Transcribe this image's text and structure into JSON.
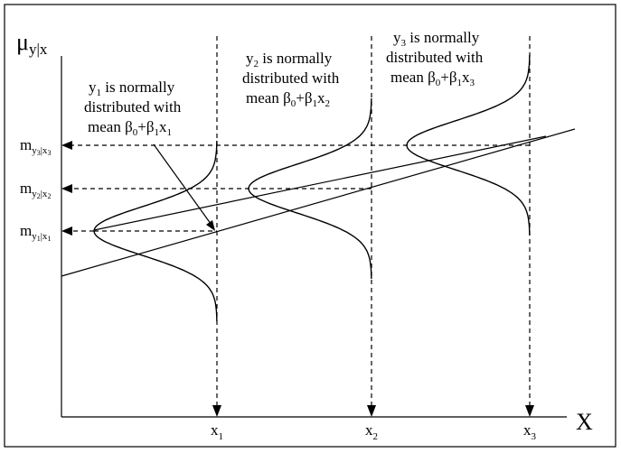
{
  "axes": {
    "y_title": {
      "main": "μ",
      "sub": "y|x"
    },
    "x_title": "X"
  },
  "x_ticks": [
    {
      "main": "x",
      "sub": "1"
    },
    {
      "main": "x",
      "sub": "2"
    },
    {
      "main": "x",
      "sub": "3"
    }
  ],
  "y_ticks": [
    {
      "main": "m",
      "sub": "y",
      "subsub": "3",
      "bar": "|x",
      "barsub": "3"
    },
    {
      "main": "m",
      "sub": "y",
      "subsub": "2",
      "bar": "|x",
      "barsub": "2"
    },
    {
      "main": "m",
      "sub": "y",
      "subsub": "1",
      "bar": "|x",
      "barsub": "1"
    }
  ],
  "annotations": [
    {
      "line1": {
        "y": "y",
        "ysub": "1",
        "text": " is normally"
      },
      "line2": "distributed with",
      "line3": {
        "mean": "mean ",
        "b0": "β",
        "b0sub": "0",
        "plus": "+",
        "b1": "β",
        "b1sub": "1",
        "x": "x",
        "xsub": "1"
      }
    },
    {
      "line1": {
        "y": "y",
        "ysub": "2",
        "text": " is normally"
      },
      "line2": "distributed with",
      "line3": {
        "mean": "mean ",
        "b0": "β",
        "b0sub": "0",
        "plus": "+",
        "b1": "β",
        "b1sub": "1",
        "x": "x",
        "xsub": "2"
      }
    },
    {
      "line1": {
        "y": "y",
        "ysub": "3",
        "text": " is normally"
      },
      "line2": "distributed with",
      "line3": {
        "mean": "mean ",
        "b0": "β",
        "b0sub": "0",
        "plus": "+",
        "b1": "β",
        "b1sub": "1",
        "x": "x",
        "xsub": "3"
      }
    }
  ]
}
